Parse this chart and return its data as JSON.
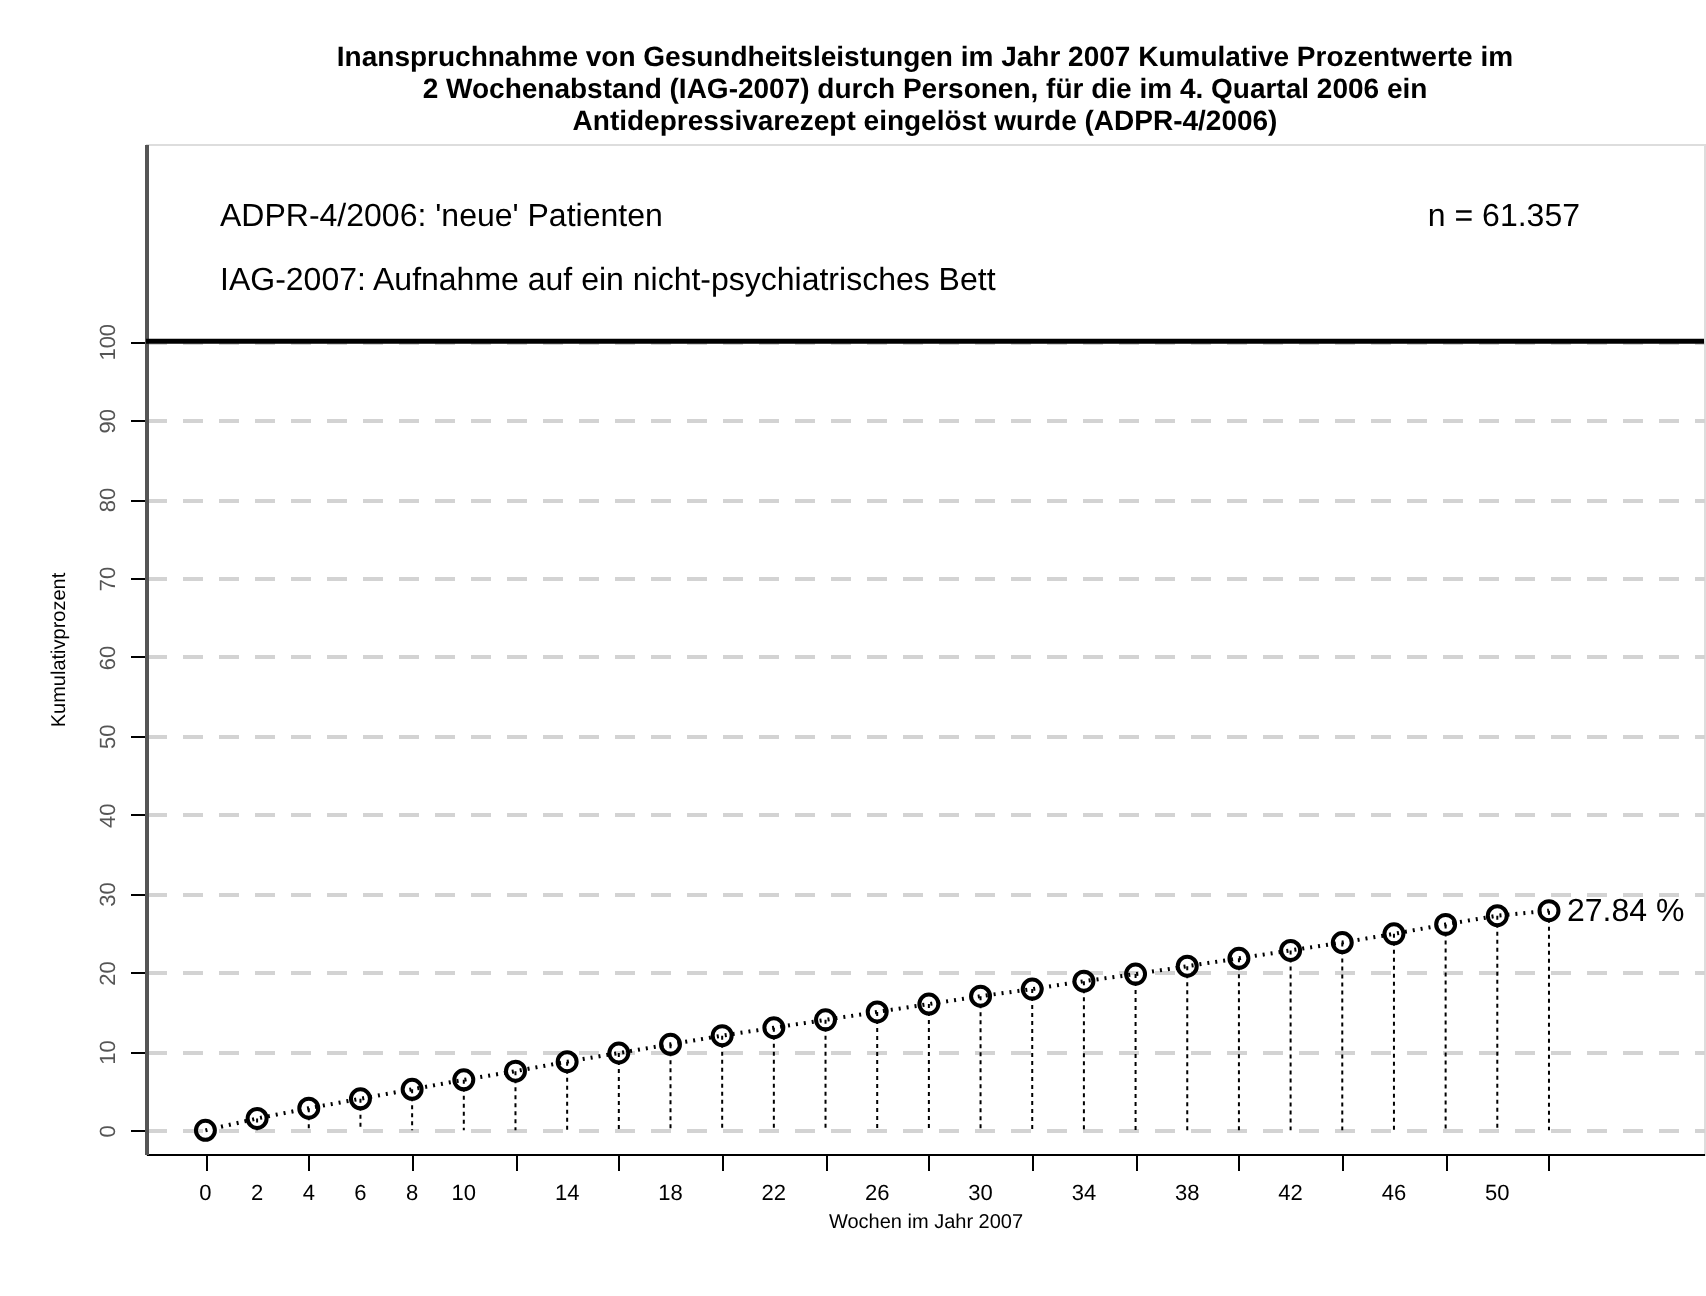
{
  "chart_data": {
    "type": "lollipop",
    "title": [
      "Inanspruchnahme von Gesundheitsleistungen im Jahr 2007 Kumulative Prozentwerte im",
      "2 Wochenabstand (IAG-2007) durch Personen, für die im 4. Quartal 2006 ein",
      "Antidepressivarezept eingelöst wurde (ADPR-4/2006)"
    ],
    "xlabel": "Wochen im Jahr 2007",
    "ylabel": "Kumulativprozent",
    "annotations": [
      "ADPR-4/2006: 'neue' Patienten",
      "IAG-2007: Aufnahme auf ein nicht-psychiatrisches Bett",
      "n = 61.357"
    ],
    "x": [
      0,
      2,
      4,
      6,
      8,
      10,
      12,
      14,
      16,
      18,
      20,
      22,
      24,
      26,
      28,
      30,
      32,
      34,
      36,
      38,
      40,
      42,
      44,
      46,
      48,
      50,
      52
    ],
    "series": [
      {
        "color": "#000000",
        "marker": "circle",
        "values": [
          0,
          1.5,
          2.8,
          4.0,
          5.2,
          6.4,
          7.5,
          8.7,
          9.8,
          10.9,
          12.0,
          13.0,
          14.0,
          15.0,
          16.0,
          17.0,
          17.9,
          18.9,
          19.8,
          20.8,
          21.8,
          22.8,
          23.8,
          24.9,
          26.1,
          27.2,
          27.84
        ],
        "value_labels": [
          null,
          null,
          null,
          null,
          null,
          null,
          null,
          null,
          null,
          null,
          null,
          null,
          null,
          null,
          null,
          null,
          null,
          null,
          null,
          null,
          null,
          null,
          null,
          null,
          null,
          null,
          "27.84 %"
        ]
      },
      {
        "type": "line",
        "color": "#000000",
        "line_style": "dotted",
        "values": [
          0,
          1.5,
          2.8,
          4.0,
          5.2,
          6.4,
          7.5,
          8.7,
          9.8,
          10.9,
          12.0,
          13.0,
          14.0,
          15.0,
          16.0,
          17.0,
          17.9,
          18.9,
          19.8,
          20.8,
          21.8,
          22.8,
          23.8,
          24.9,
          26.1,
          27.2,
          27.84
        ]
      }
    ],
    "xlim": [
      -2.3,
      58
    ],
    "ylim": [
      -3,
      125
    ],
    "xticks": [
      0,
      2,
      4,
      6,
      8,
      10,
      {
        "value": 12,
        "label": null
      },
      14,
      {
        "value": 16,
        "label": null
      },
      18,
      {
        "value": 20,
        "label": null
      },
      22,
      {
        "value": 24,
        "label": null
      },
      26,
      {
        "value": 28,
        "label": null
      },
      30,
      {
        "value": 32,
        "label": null
      },
      34,
      {
        "value": 36,
        "label": null
      },
      38,
      {
        "value": 40,
        "label": null
      },
      42,
      {
        "value": 44,
        "label": null
      },
      46,
      {
        "value": 48,
        "label": null
      },
      50,
      {
        "value": 52,
        "label": null
      }
    ],
    "yticks": [
      0,
      10,
      20,
      30,
      40,
      50,
      60,
      70,
      80,
      90,
      100
    ],
    "grid": "y",
    "ref_lines": [
      {
        "axis": "y",
        "value": 100,
        "color": "#000000",
        "line_style": "solid"
      }
    ]
  }
}
